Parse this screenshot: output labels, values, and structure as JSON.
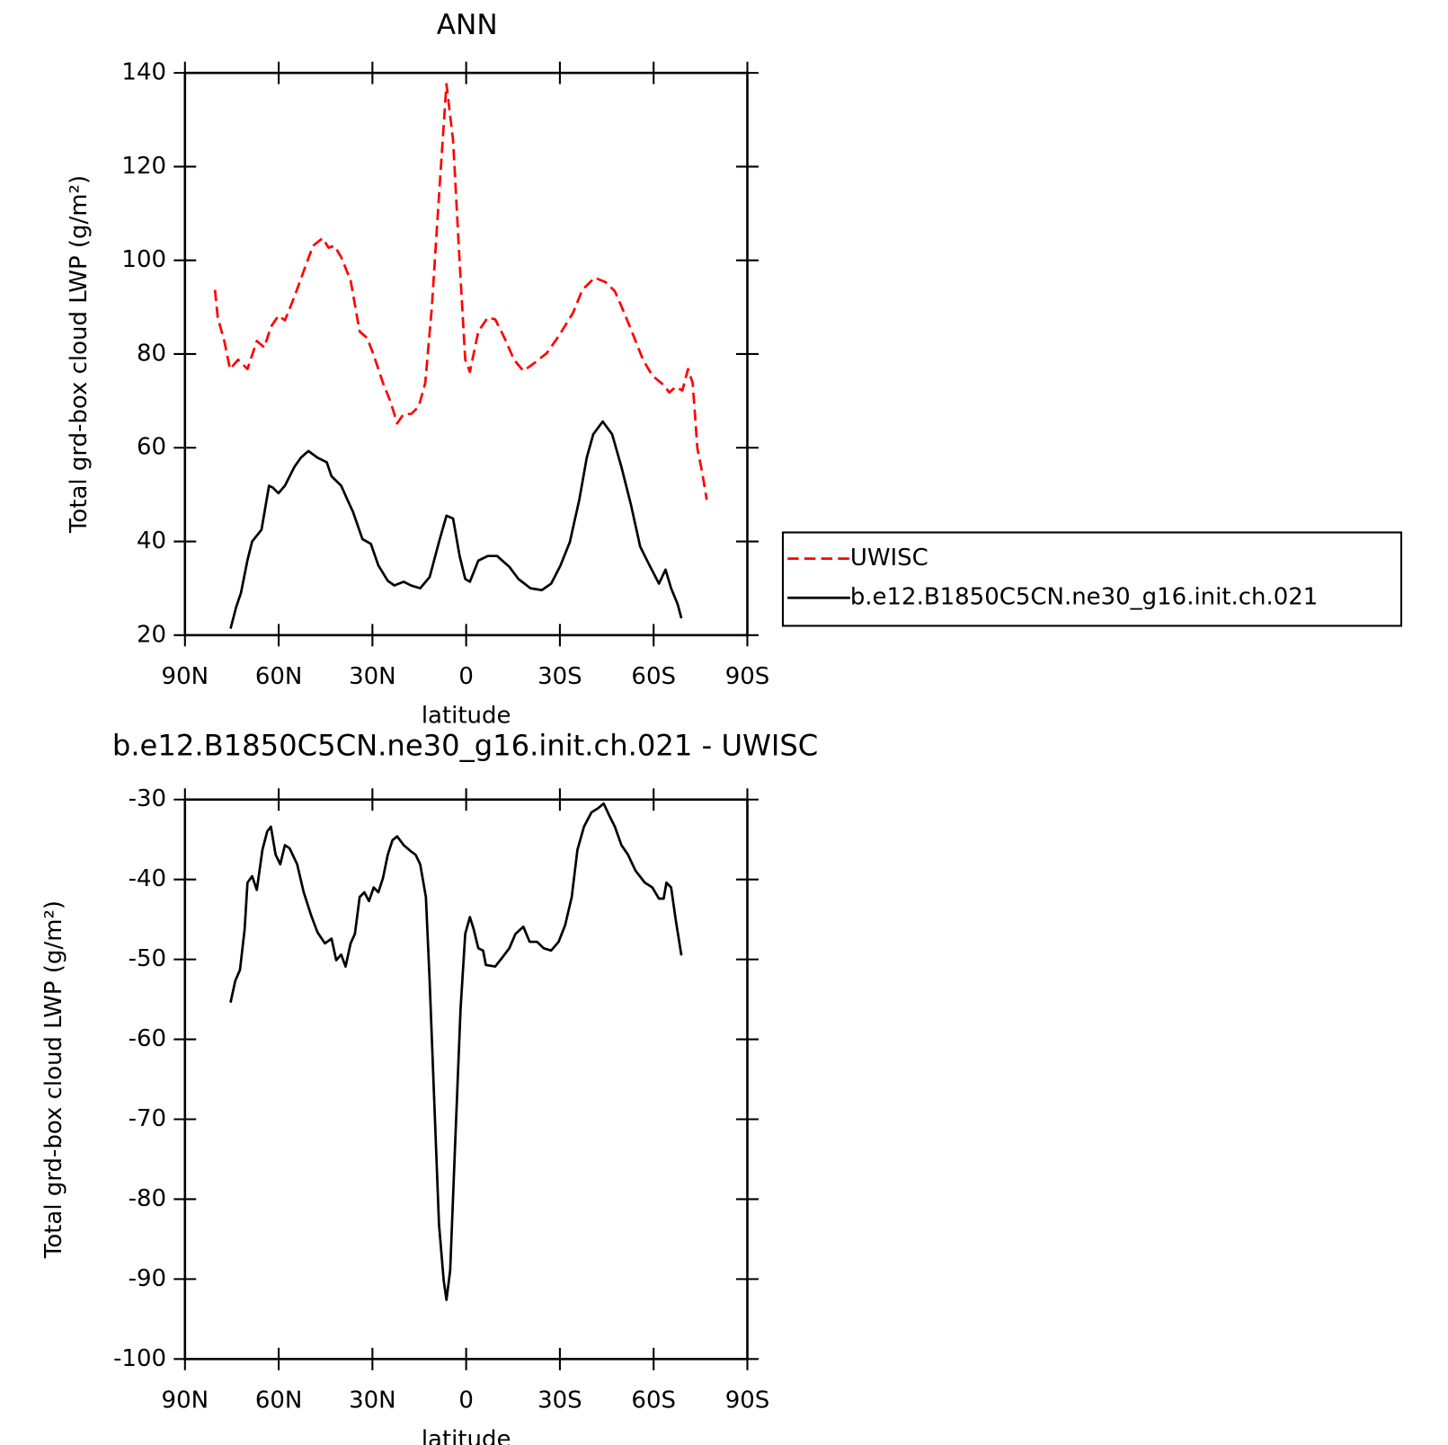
{
  "chart_data": [
    {
      "type": "line",
      "title": "ANN",
      "xlabel": "latitude",
      "ylabel": "Total grd-box cloud LWP (g/m²)",
      "xlim": [
        90,
        -90
      ],
      "xticks": [
        {
          "value": 90,
          "label": "90N"
        },
        {
          "value": 60,
          "label": "60N"
        },
        {
          "value": 30,
          "label": "30N"
        },
        0,
        {
          "value": -30,
          "label": "30S"
        },
        {
          "value": -60,
          "label": "60S"
        },
        {
          "value": -90,
          "label": "90S"
        }
      ],
      "ylim": [
        20,
        140
      ],
      "yticks": [
        20,
        40,
        60,
        80,
        100,
        120,
        140
      ],
      "legend": "right",
      "series": [
        {
          "name": "UWISC",
          "color": "#ff0000",
          "linestyle": "dashed",
          "x": [
            80.4,
            79.5,
            77.4,
            75.6,
            73,
            70,
            67,
            64.6,
            62.5,
            60.1,
            58,
            55,
            52,
            49,
            46,
            44,
            42.2,
            40,
            37,
            34.1,
            31.7,
            29.6,
            26.6,
            24.2,
            22.1,
            20,
            17.6,
            15.2,
            13.1,
            11,
            8.7,
            6.3,
            4.2,
            2.1,
            0.3,
            -1.2,
            -3.9,
            -6.9,
            -9.3,
            -12.3,
            -15.3,
            -18.3,
            -21.3,
            -25.8,
            -29.6,
            -34.2,
            -37.2,
            -41.1,
            -44.7,
            -47.6,
            -50.6,
            -53.6,
            -56.6,
            -59.6,
            -63.2,
            -65,
            -67.1,
            -69.2,
            -71,
            -72.5,
            -74,
            -75.5,
            -77
          ],
          "values": [
            93.7,
            87.8,
            82.8,
            76.8,
            78.8,
            76.8,
            82.8,
            81.4,
            85.8,
            88.2,
            87.2,
            92.2,
            97.7,
            103.1,
            104.7,
            102.7,
            103.1,
            100.7,
            95.7,
            84.8,
            83.4,
            79.8,
            73.8,
            69.8,
            65.2,
            67.2,
            67.2,
            68.8,
            73.8,
            89.8,
            113.7,
            137.6,
            125.6,
            99.7,
            78.8,
            76.2,
            84.8,
            87.8,
            87.4,
            83.4,
            78.8,
            76.4,
            77.8,
            80.2,
            83.8,
            88.8,
            93.7,
            96.3,
            95.3,
            93.4,
            88.8,
            83.8,
            78.8,
            75.4,
            73.4,
            71.8,
            73,
            72.2,
            76.8,
            73.8,
            59.9,
            54.9,
            48.9
          ]
        },
        {
          "name": "b.e12.B1850C5CN.ne30_g16.init.ch.021",
          "color": "#000000",
          "linestyle": "solid",
          "x": [
            75.4,
            73.6,
            72.1,
            70,
            68.5,
            65.5,
            63.1,
            61.9,
            60.1,
            58,
            55,
            52.9,
            50.5,
            47.6,
            44.6,
            43.1,
            40,
            38,
            36.2,
            33.2,
            30.5,
            28.1,
            25.1,
            23,
            20,
            17.6,
            14.7,
            11.7,
            8.7,
            6.3,
            4.2,
            2.1,
            0.3,
            -1.2,
            -3.9,
            -6.9,
            -9.9,
            -13.8,
            -16.7,
            -20.6,
            -24.2,
            -27.2,
            -30.2,
            -33.2,
            -36.2,
            -38.6,
            -40.7,
            -43.7,
            -46.7,
            -49.7,
            -52.7,
            -55.7,
            -58.7,
            -61.7,
            -63.8,
            -65.6,
            -67.7,
            -68.9
          ],
          "values": [
            21.4,
            26,
            29,
            36,
            40,
            42.5,
            51.9,
            51.5,
            50.3,
            51.9,
            55.9,
            57.9,
            59.3,
            57.9,
            56.9,
            53.9,
            51.9,
            48.9,
            46.3,
            40.5,
            39.5,
            34.9,
            31.6,
            30.6,
            31.4,
            30.6,
            30,
            32.4,
            39.9,
            45.5,
            44.9,
            36.9,
            32,
            31.4,
            35.9,
            36.9,
            36.9,
            34.6,
            32,
            30,
            29.6,
            31,
            34.9,
            39.9,
            48.9,
            57.9,
            62.9,
            65.6,
            62.9,
            55.9,
            47.9,
            38.9,
            34.9,
            31,
            34,
            30,
            26.6,
            23.6
          ]
        }
      ]
    },
    {
      "type": "line",
      "title": "b.e12.B1850C5CN.ne30_g16.init.ch.021 - UWISC",
      "xlabel": "latitude",
      "ylabel": "Total grd-box cloud LWP (g/m²)",
      "xlim": [
        90,
        -90
      ],
      "xticks": [
        {
          "value": 90,
          "label": "90N"
        },
        {
          "value": 60,
          "label": "60N"
        },
        {
          "value": 30,
          "label": "30N"
        },
        0,
        {
          "value": -30,
          "label": "30S"
        },
        {
          "value": -60,
          "label": "60S"
        },
        {
          "value": -90,
          "label": "90S"
        }
      ],
      "ylim": [
        -100,
        -30
      ],
      "yticks": [
        -100,
        -90,
        -80,
        -70,
        -60,
        -50,
        -40,
        -30
      ],
      "series": [
        {
          "color": "#000000",
          "linestyle": "solid",
          "x": [
            75.4,
            73.9,
            72.4,
            70.9,
            70,
            68.5,
            67,
            65.2,
            63.7,
            62.5,
            61,
            59.5,
            58,
            56.5,
            54.1,
            52,
            49.6,
            47.6,
            45.2,
            43.1,
            41.6,
            40,
            38.6,
            37,
            35.6,
            34.1,
            32.6,
            31.1,
            29.6,
            28.1,
            26.6,
            25.1,
            23.6,
            22.1,
            20,
            17.6,
            16.2,
            14.7,
            12.9,
            11.7,
            10.2,
            8.7,
            7.2,
            6.3,
            5.1,
            3.6,
            1.8,
            0.3,
            -1.2,
            -2.4,
            -3.9,
            -5.4,
            -6.3,
            -9.3,
            -11.7,
            -13.8,
            -15.8,
            -18.3,
            -20.3,
            -22.7,
            -24.8,
            -27.2,
            -29.6,
            -31.7,
            -33.8,
            -35.6,
            -37.7,
            -40.1,
            -42.2,
            -44,
            -45.8,
            -47.6,
            -49.7,
            -51.8,
            -54.2,
            -57.2,
            -59.6,
            -61.7,
            -63.2,
            -64.1,
            -65.6,
            -67.1,
            -68.9
          ],
          "values": [
            -55.4,
            -52.7,
            -51.3,
            -46.2,
            -40.4,
            -39.6,
            -41.3,
            -36.3,
            -34,
            -33.4,
            -36.9,
            -38.1,
            -35.7,
            -36.1,
            -38.1,
            -41.6,
            -44.5,
            -46.6,
            -48,
            -47.4,
            -50.1,
            -49.4,
            -50.9,
            -48,
            -46.8,
            -42.2,
            -41.6,
            -42.7,
            -41,
            -41.6,
            -39.8,
            -36.9,
            -35.1,
            -34.6,
            -35.7,
            -36.5,
            -36.9,
            -38.1,
            -42.2,
            -52.7,
            -67.9,
            -83.1,
            -90.1,
            -92.6,
            -88.9,
            -73.7,
            -56.2,
            -46.8,
            -44.7,
            -46.2,
            -48.6,
            -48.9,
            -50.7,
            -50.9,
            -49.7,
            -48.6,
            -46.8,
            -45.9,
            -47.8,
            -47.8,
            -48.6,
            -48.9,
            -47.8,
            -45.7,
            -42.2,
            -36.3,
            -33.4,
            -31.6,
            -31.1,
            -30.5,
            -32,
            -33.4,
            -35.7,
            -36.9,
            -38.9,
            -40.4,
            -41,
            -42.4,
            -42.4,
            -40.4,
            -41,
            -45.1,
            -49.5
          ]
        }
      ]
    }
  ]
}
